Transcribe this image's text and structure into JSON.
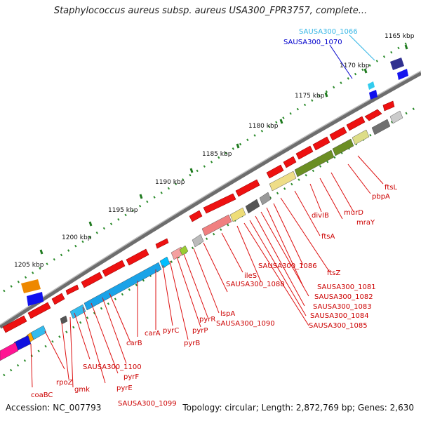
{
  "title": "Staphylococcus aureus subsp. aureus USA300_FPR3757, complete...",
  "footer": {
    "accession": "Accession: NC_007793",
    "topology": "Topology: circular; Length: 2,872,769 bp; Genes: 2,630"
  },
  "ticks": [
    "1165 kbp",
    "1170 kbp",
    "1175 kbp",
    "1180 kbp",
    "1185 kbp",
    "1190 kbp",
    "1195 kbp",
    "1200 kbp",
    "1205 kbp"
  ],
  "labels": {
    "sausa1066": "SAUSA300_1066",
    "sausa1070": "SAUSA300_1070",
    "ftsL": "ftsL",
    "pbpA": "pbpA",
    "murD": "murD",
    "mraY": "mraY",
    "divIB": "divIB",
    "ftsA": "ftsA",
    "ftsZ": "ftsZ",
    "sausa1086": "SAUSA300_1086",
    "ileS": "ileS",
    "sausa1088": "SAUSA300_1088",
    "sausa1081": "SAUSA300_1081",
    "sausa1082": "SAUSA300_1082",
    "sausa1083": "SAUSA300_1083",
    "sausa1084": "SAUSA300_1084",
    "sausa1085": "SAUSA300_1085",
    "lspA": "lspA",
    "sausa1090": "SAUSA300_1090",
    "pyrR": "pyrR",
    "pyrP": "pyrP",
    "pyrB": "pyrB",
    "pyrC": "pyrC",
    "carA": "carA",
    "carB": "carB",
    "sausa1100": "SAUSA300_1100",
    "pyrF": "pyrF",
    "pyrE": "pyrE",
    "sausa1099": "SAUSA300_1099",
    "gmk": "gmk",
    "rpoZ": "rpoZ",
    "coaBC": "coaBC"
  },
  "colors": {
    "forward_gene": "#ee1111",
    "label_red": "#cc0000",
    "label_cyan": "#33b5e5",
    "label_blue": "#0000cc",
    "backbone": "#777777",
    "tick_green": "#2a8a2a"
  }
}
